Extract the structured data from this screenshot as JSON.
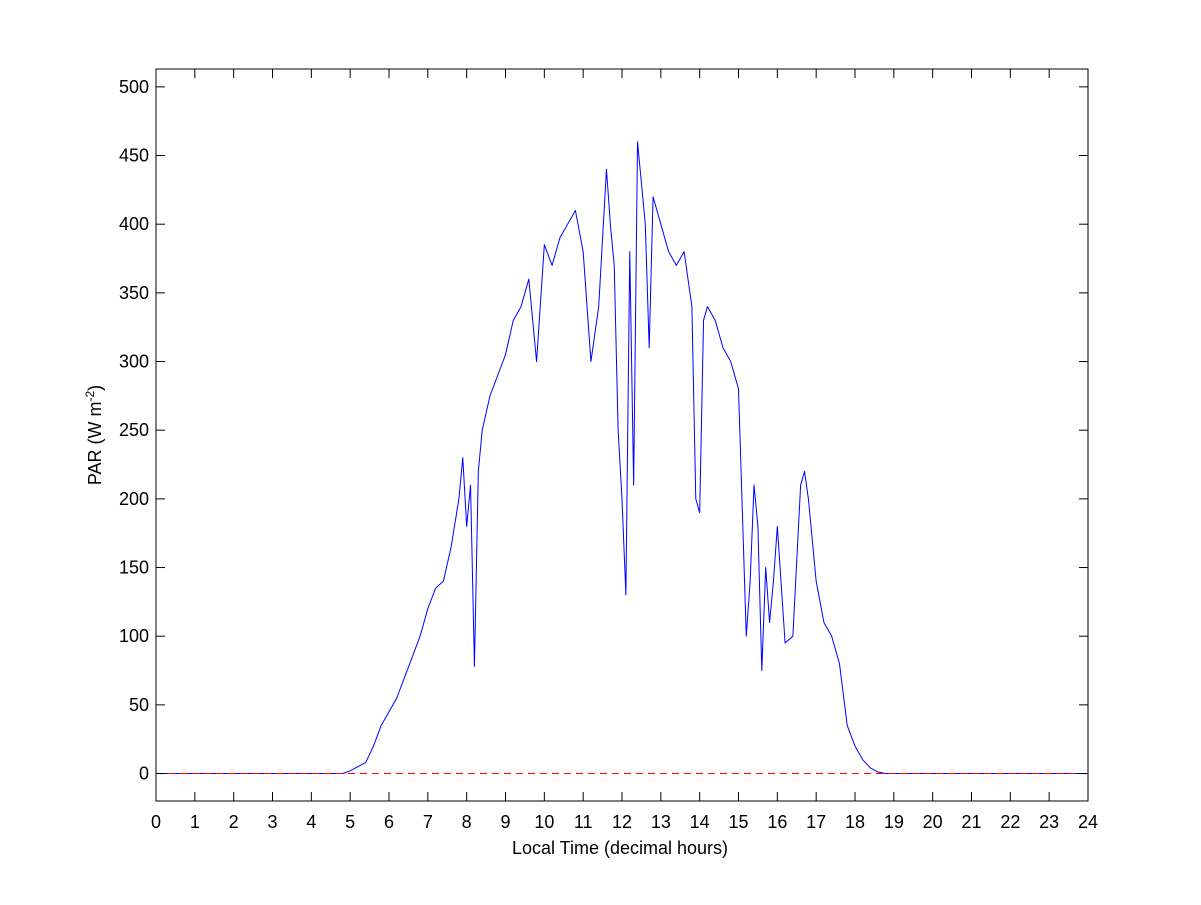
{
  "chart_data": {
    "type": "line",
    "xlabel": "Local Time (decimal hours)",
    "ylabel": "PAR (W m",
    "ylabel_sup": "-2",
    "ylabel_close": ")",
    "xlim": [
      0,
      24
    ],
    "ylim": [
      -20,
      513
    ],
    "x_ticks": [
      0,
      1,
      2,
      3,
      4,
      5,
      6,
      7,
      8,
      9,
      10,
      11,
      12,
      13,
      14,
      15,
      16,
      17,
      18,
      19,
      20,
      21,
      22,
      23,
      24
    ],
    "y_ticks": [
      0,
      50,
      100,
      150,
      200,
      250,
      300,
      350,
      400,
      450,
      500
    ],
    "grid": false,
    "legend": "none",
    "colors": {
      "series": "#0000ff",
      "baseline": "#ff0000",
      "axes": "#000000",
      "background": "#ffffff"
    },
    "series": [
      {
        "style": "solid",
        "color": "#0000ff",
        "x": [
          0,
          1,
          2,
          3,
          4,
          4.8,
          5.0,
          5.2,
          5.4,
          5.6,
          5.8,
          6.0,
          6.2,
          6.4,
          6.6,
          6.8,
          7.0,
          7.2,
          7.4,
          7.6,
          7.8,
          7.9,
          8.0,
          8.1,
          8.2,
          8.3,
          8.4,
          8.6,
          8.8,
          9.0,
          9.2,
          9.4,
          9.6,
          9.8,
          10.0,
          10.2,
          10.4,
          10.6,
          10.8,
          11.0,
          11.2,
          11.4,
          11.6,
          11.7,
          11.8,
          11.9,
          12.0,
          12.1,
          12.2,
          12.3,
          12.4,
          12.5,
          12.6,
          12.7,
          12.8,
          13.0,
          13.2,
          13.4,
          13.6,
          13.8,
          13.9,
          14.0,
          14.1,
          14.2,
          14.4,
          14.6,
          14.8,
          15.0,
          15.2,
          15.3,
          15.4,
          15.5,
          15.6,
          15.7,
          15.8,
          15.9,
          16.0,
          16.2,
          16.4,
          16.6,
          16.7,
          16.8,
          16.9,
          17.0,
          17.2,
          17.4,
          17.6,
          17.8,
          18.0,
          18.2,
          18.4,
          18.6,
          18.8,
          19.0,
          19.2,
          20,
          21,
          22,
          23,
          24
        ],
        "y": [
          0,
          0,
          0,
          0,
          0,
          0,
          2,
          5,
          8,
          20,
          35,
          45,
          55,
          70,
          85,
          100,
          120,
          135,
          140,
          165,
          200,
          230,
          180,
          210,
          78,
          220,
          250,
          275,
          290,
          305,
          330,
          340,
          360,
          300,
          385,
          370,
          390,
          400,
          410,
          380,
          300,
          340,
          440,
          400,
          370,
          250,
          200,
          130,
          380,
          210,
          460,
          430,
          400,
          310,
          420,
          400,
          380,
          370,
          380,
          340,
          200,
          190,
          330,
          340,
          330,
          310,
          300,
          280,
          100,
          140,
          210,
          180,
          75,
          150,
          110,
          140,
          180,
          95,
          100,
          210,
          220,
          200,
          170,
          140,
          110,
          100,
          80,
          35,
          20,
          10,
          4,
          1,
          0,
          0,
          0,
          0,
          0,
          0,
          0,
          0
        ]
      },
      {
        "style": "dashed",
        "color": "#ff0000",
        "x": [
          0,
          24
        ],
        "y": [
          0,
          0
        ]
      }
    ]
  }
}
